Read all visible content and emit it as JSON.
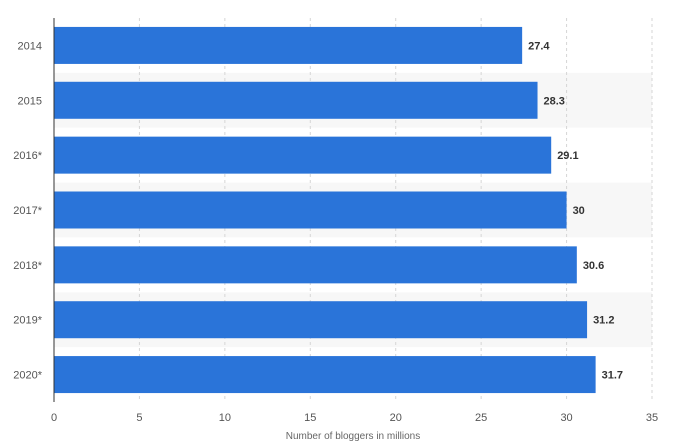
{
  "chart_data": {
    "type": "bar",
    "orientation": "horizontal",
    "title": "",
    "xlabel": "Number of bloggers in millions",
    "ylabel": "",
    "categories": [
      "2014",
      "2015",
      "2016*",
      "2017*",
      "2018*",
      "2019*",
      "2020*"
    ],
    "values": [
      27.4,
      28.3,
      29.1,
      30,
      30.6,
      31.2,
      31.7
    ],
    "value_labels": [
      "27.4",
      "28.3",
      "29.1",
      "30",
      "30.6",
      "31.2",
      "31.7"
    ],
    "xlim": [
      0,
      35
    ],
    "xticks": [
      "0",
      "5",
      "10",
      "15",
      "20",
      "25",
      "30",
      "35"
    ],
    "grid": true,
    "colors": {
      "bar": "#2a74d9",
      "band": "#f7f7f7",
      "grid": "#d6d6d6",
      "axis": "#333333"
    }
  }
}
